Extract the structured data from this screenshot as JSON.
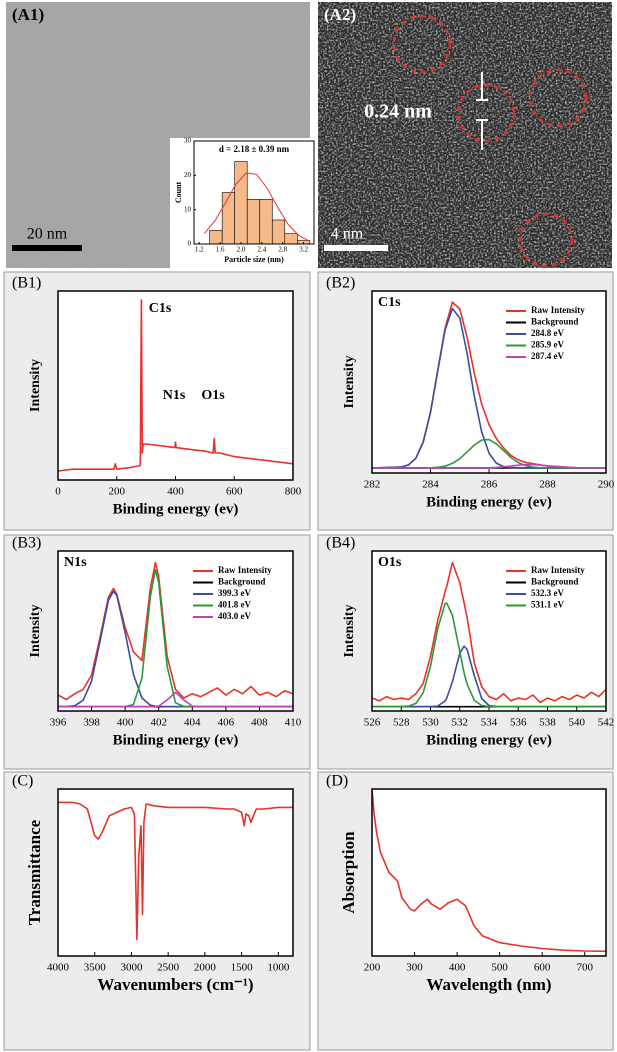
{
  "images": [
    {
      "panel_label": "(A1)",
      "scale_bar": "20 nm"
    },
    {
      "panel_label": "(A2)",
      "scale_bar": "4 nm",
      "annotation": "0.24 nm"
    }
  ],
  "chart_data": [
    {
      "type": "histogram",
      "title": "d = 2.18 ± 0.39 nm",
      "x_label": "Particle size (nm)",
      "y_label": "Count",
      "bins": [
        1.4,
        1.64,
        1.88,
        2.12,
        2.36,
        2.6,
        2.84,
        3.08,
        3.32
      ],
      "values": [
        4,
        15,
        24,
        13,
        13,
        7,
        3,
        1
      ],
      "color": "#f5b98a",
      "xlim": [
        1.1,
        3.4
      ],
      "xticks": [
        1.2,
        1.6,
        {
          "value": 2,
          "label": "2.0"
        },
        2.4,
        2.8,
        3.2
      ],
      "ylim": [
        0,
        30
      ],
      "yticks": [
        0,
        10,
        20,
        30
      ],
      "fit": {
        "color": "#e8312a",
        "x": [
          1.3,
          1.5,
          1.7,
          1.9,
          2.1,
          2.3,
          2.5,
          2.7,
          2.9,
          3.1,
          3.3
        ],
        "values": [
          3.1,
          6.7,
          11.9,
          17.3,
          20.7,
          20.3,
          16.3,
          10.8,
          5.8,
          2.6,
          0.9
        ]
      }
    },
    {
      "type": "line",
      "panel_label": "(B1)",
      "x_label": "Binding energy (ev)",
      "y_label": "Intensity",
      "x": [
        0,
        50,
        100,
        150,
        190,
        195,
        200,
        250,
        280,
        284,
        287,
        290,
        300,
        350,
        398,
        400,
        402,
        450,
        500,
        528,
        532,
        535,
        550,
        600,
        700,
        800
      ],
      "series": [
        {
          "color": "#e8312a",
          "values": [
            0.05,
            0.06,
            0.06,
            0.06,
            0.06,
            0.09,
            0.06,
            0.07,
            0.08,
            1.0,
            0.15,
            0.2,
            0.2,
            0.19,
            0.18,
            0.21,
            0.18,
            0.17,
            0.16,
            0.15,
            0.23,
            0.15,
            0.15,
            0.13,
            0.11,
            0.09
          ]
        }
      ],
      "xlim": [
        0,
        800
      ],
      "xticks": [
        0,
        200,
        400,
        600,
        800
      ],
      "ylim": [
        0,
        1.05
      ],
      "annotations": [
        "C1s",
        "N1s",
        "O1s"
      ]
    },
    {
      "type": "line",
      "panel_label": "(B2)",
      "title": "C1s",
      "x_label": "Binding energy (ev)",
      "y_label": "Intensity",
      "legend": "upper right",
      "x": [
        282,
        283,
        283.25,
        283.5,
        283.75,
        284,
        284.25,
        284.5,
        284.75,
        285,
        285.25,
        285.5,
        285.75,
        286,
        286.25,
        286.5,
        286.75,
        287,
        287.25,
        287.5,
        287.75,
        288,
        289,
        290
      ],
      "series": [
        {
          "name": "Raw Intensity",
          "color": "#e8312a",
          "values": [
            0,
            0.005,
            0.018,
            0.058,
            0.154,
            0.331,
            0.581,
            0.83,
            0.984,
            0.944,
            0.775,
            0.559,
            0.379,
            0.257,
            0.175,
            0.118,
            0.075,
            0.048,
            0.033,
            0.025,
            0.018,
            0.012,
            0.001,
            0
          ]
        },
        {
          "name": "Background",
          "color": "#000000",
          "values": [
            0,
            0,
            0,
            0,
            0,
            0,
            0,
            0,
            0,
            0,
            0,
            0,
            0,
            0,
            0,
            0,
            0,
            0,
            0,
            0,
            0,
            0,
            0,
            0
          ]
        },
        {
          "name": "284.8 eV",
          "color": "#3a4ea0",
          "values": [
            0,
            0.005,
            0.018,
            0.058,
            0.154,
            0.33,
            0.577,
            0.819,
            0.946,
            0.889,
            0.68,
            0.423,
            0.214,
            0.088,
            0.029,
            0.008,
            0.002,
            0,
            0,
            0,
            0,
            0,
            0,
            0
          ]
        },
        {
          "name": "285.9 eV",
          "color": "#2a9a3a",
          "values": [
            0,
            0,
            0,
            0,
            0,
            0.001,
            0.004,
            0.011,
            0.027,
            0.055,
            0.095,
            0.136,
            0.165,
            0.168,
            0.143,
            0.103,
            0.062,
            0.032,
            0.014,
            0.005,
            0.001,
            0,
            0,
            0
          ]
        },
        {
          "name": "287.4 eV",
          "color": "#c040c0",
          "values": [
            0,
            0,
            0,
            0,
            0,
            0,
            0,
            0,
            0,
            0,
            0,
            0,
            0,
            0.001,
            0.003,
            0.007,
            0.011,
            0.016,
            0.019,
            0.02,
            0.017,
            0.012,
            0.001,
            0
          ]
        }
      ],
      "xlim": [
        282,
        290
      ],
      "xticks": [
        282,
        284,
        286,
        288,
        290
      ],
      "ylim": [
        -0.03,
        1.05
      ]
    },
    {
      "type": "line",
      "panel_label": "(B3)",
      "title": "N1s",
      "x_label": "Binding energy (ev)",
      "y_label": "Intensity",
      "legend": "upper right",
      "x": [
        396,
        396.5,
        397,
        397.5,
        398,
        398.5,
        399,
        399.3,
        399.5,
        400,
        400.5,
        401,
        401.5,
        401.8,
        402,
        402.5,
        403,
        403.5,
        404,
        404.5,
        405,
        405.5,
        406,
        406.5,
        407,
        407.5,
        408,
        408.5,
        409,
        409.5,
        410
      ],
      "series": [
        {
          "name": "Raw Intensity",
          "color": "#e8312a",
          "values": [
            0.08,
            0.05,
            0.09,
            0.12,
            0.22,
            0.48,
            0.76,
            0.82,
            0.78,
            0.55,
            0.38,
            0.32,
            0.82,
            1.0,
            0.9,
            0.35,
            0.12,
            0.06,
            0.09,
            0.07,
            0.1,
            0.13,
            0.08,
            0.12,
            0.09,
            0.14,
            0.08,
            0.1,
            0.07,
            0.11,
            0.09
          ]
        },
        {
          "name": "Background",
          "color": "#000000",
          "values": [
            0,
            0,
            0,
            0,
            0,
            0,
            0,
            0,
            0,
            0,
            0,
            0,
            0,
            0,
            0,
            0,
            0,
            0,
            0,
            0,
            0,
            0,
            0,
            0,
            0,
            0,
            0,
            0,
            0,
            0,
            0
          ]
        },
        {
          "name": "399.3 eV",
          "color": "#3a4ea0",
          "values": [
            0,
            0.001,
            0.007,
            0.045,
            0.178,
            0.453,
            0.738,
            0.8,
            0.772,
            0.517,
            0.222,
            0.061,
            0.011,
            0.003,
            0.001,
            0,
            0,
            0,
            0,
            0,
            0,
            0,
            0,
            0,
            0,
            0,
            0,
            0,
            0,
            0,
            0
          ]
        },
        {
          "name": "401.8 eV",
          "color": "#2a9a3a",
          "values": [
            0,
            0,
            0,
            0,
            0,
            0,
            0,
            0,
            0,
            0,
            0.015,
            0.196,
            0.761,
            0.95,
            0.861,
            0.283,
            0.027,
            0.001,
            0,
            0,
            0,
            0,
            0,
            0,
            0,
            0,
            0,
            0,
            0,
            0,
            0
          ]
        },
        {
          "name": "403.0 eV",
          "color": "#c040c0",
          "values": [
            0,
            0,
            0,
            0,
            0,
            0,
            0,
            0,
            0,
            0,
            0,
            0,
            0,
            0.001,
            0.004,
            0.046,
            0.1,
            0.046,
            0.004,
            0,
            0,
            0,
            0,
            0,
            0,
            0,
            0,
            0,
            0,
            0,
            0
          ]
        }
      ],
      "xlim": [
        396,
        410
      ],
      "xticks": [
        396,
        398,
        400,
        402,
        404,
        406,
        408,
        410
      ],
      "ylim": [
        -0.03,
        1.08
      ]
    },
    {
      "type": "line",
      "panel_label": "(B4)",
      "title": "O1s",
      "x_label": "Binding energy (ev)",
      "y_label": "Intensity",
      "legend": "upper right",
      "x": [
        526,
        526.5,
        527,
        527.5,
        528,
        528.5,
        529,
        529.5,
        530,
        530.5,
        531,
        531.1,
        531.5,
        532,
        532.3,
        532.5,
        533,
        533.5,
        534,
        534.5,
        535,
        535.5,
        536,
        536.5,
        537,
        537.5,
        538,
        538.5,
        539,
        539.5,
        540,
        540.5,
        541,
        541.5,
        542
      ],
      "series": [
        {
          "name": "Raw Intensity",
          "color": "#e8312a",
          "values": [
            0.06,
            0.04,
            0.07,
            0.05,
            0.06,
            0.05,
            0.09,
            0.16,
            0.35,
            0.6,
            0.8,
            0.83,
            1.0,
            0.86,
            0.72,
            0.62,
            0.3,
            0.14,
            0.07,
            0.05,
            0.09,
            0.04,
            0.06,
            0.05,
            0.08,
            0.03,
            0.06,
            0.04,
            0.07,
            0.05,
            0.08,
            0.06,
            0.1,
            0.07,
            0.12
          ]
        },
        {
          "name": "Background",
          "color": "#000000",
          "values": [
            0,
            0,
            0,
            0,
            0,
            0,
            0,
            0,
            0,
            0,
            0,
            0,
            0,
            0,
            0,
            0,
            0,
            0,
            0,
            0,
            0,
            0,
            0,
            0,
            0,
            0,
            0,
            0,
            0,
            0,
            0,
            0,
            0,
            0,
            0
          ]
        },
        {
          "name": "532.3 eV",
          "color": "#3a4ea0",
          "values": [
            0,
            0,
            0,
            0,
            0,
            0,
            0,
            0,
            0,
            0.005,
            0.04,
            0.057,
            0.173,
            0.371,
            0.42,
            0.397,
            0.213,
            0.057,
            0.008,
            0.001,
            0,
            0,
            0,
            0,
            0,
            0,
            0,
            0,
            0,
            0,
            0,
            0,
            0,
            0,
            0
          ]
        },
        {
          "name": "531.1 eV",
          "color": "#2a9a3a",
          "values": [
            0,
            0,
            0,
            0,
            0,
            0.004,
            0.023,
            0.097,
            0.28,
            0.544,
            0.714,
            0.72,
            0.635,
            0.382,
            0.234,
            0.156,
            0.043,
            0.008,
            0.001,
            0,
            0,
            0,
            0,
            0,
            0,
            0,
            0,
            0,
            0,
            0,
            0,
            0,
            0,
            0,
            0
          ]
        }
      ],
      "xlim": [
        526,
        542
      ],
      "xticks": [
        526,
        528,
        530,
        532,
        534,
        536,
        538,
        540,
        542
      ],
      "ylim": [
        -0.03,
        1.08
      ]
    },
    {
      "type": "line",
      "panel_label": "(C)",
      "x_label": "Wavenumbers (cm⁻¹)",
      "y_label": "Transmittance",
      "x": [
        4000,
        3800,
        3700,
        3600,
        3500,
        3450,
        3400,
        3300,
        3100,
        3000,
        2960,
        2925,
        2900,
        2870,
        2850,
        2830,
        2800,
        2700,
        2500,
        2000,
        1700,
        1600,
        1500,
        1465,
        1440,
        1400,
        1375,
        1300,
        1200,
        1000,
        800
      ],
      "series": [
        {
          "color": "#e8312a",
          "values": [
            0.92,
            0.92,
            0.91,
            0.88,
            0.72,
            0.7,
            0.74,
            0.84,
            0.88,
            0.89,
            0.85,
            0.1,
            0.6,
            0.78,
            0.25,
            0.8,
            0.91,
            0.9,
            0.89,
            0.89,
            0.88,
            0.88,
            0.86,
            0.78,
            0.85,
            0.84,
            0.8,
            0.88,
            0.88,
            0.89,
            0.89
          ]
        }
      ],
      "xlim": [
        4000,
        800
      ],
      "xticks": [
        4000,
        3500,
        3000,
        2500,
        2000,
        1500,
        1000
      ],
      "ylim": [
        0,
        1
      ]
    },
    {
      "type": "line",
      "panel_label": "(D)",
      "x_label": "Wavelength (nm)",
      "y_label": "Absorption",
      "x": [
        200,
        205,
        210,
        220,
        240,
        260,
        270,
        290,
        300,
        315,
        330,
        340,
        360,
        380,
        400,
        420,
        440,
        460,
        500,
        550,
        600,
        650,
        700,
        750
      ],
      "series": [
        {
          "color": "#e8312a",
          "values": [
            1.0,
            0.85,
            0.75,
            0.62,
            0.5,
            0.45,
            0.35,
            0.28,
            0.27,
            0.31,
            0.34,
            0.31,
            0.28,
            0.32,
            0.34,
            0.3,
            0.18,
            0.12,
            0.08,
            0.06,
            0.045,
            0.035,
            0.03,
            0.028
          ]
        }
      ],
      "xlim": [
        200,
        750
      ],
      "xticks": [
        200,
        300,
        400,
        500,
        600,
        700
      ],
      "ylim": [
        0,
        1
      ]
    }
  ]
}
